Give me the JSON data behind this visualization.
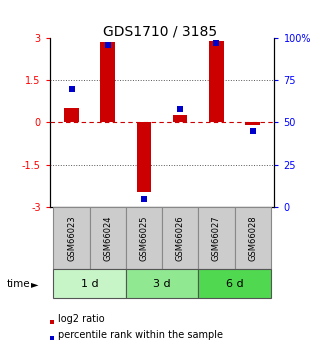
{
  "title": "GDS1710 / 3185",
  "samples": [
    "GSM66023",
    "GSM66024",
    "GSM66025",
    "GSM66026",
    "GSM66027",
    "GSM66028"
  ],
  "log2_ratio": [
    0.5,
    2.85,
    -2.45,
    0.25,
    2.9,
    -0.1
  ],
  "percentile_rank": [
    70,
    96,
    5,
    58,
    97,
    45
  ],
  "groups": [
    {
      "label": "1 d",
      "samples": [
        0,
        1
      ],
      "color": "#c8f5c8"
    },
    {
      "label": "3 d",
      "samples": [
        2,
        3
      ],
      "color": "#90e890"
    },
    {
      "label": "6 d",
      "samples": [
        4,
        5
      ],
      "color": "#50d850"
    }
  ],
  "ylim_left": [
    -3,
    3
  ],
  "ylim_right": [
    0,
    100
  ],
  "yticks_left": [
    -3,
    -1.5,
    0,
    1.5,
    3
  ],
  "ytick_labels_left": [
    "-3",
    "-1.5",
    "0",
    "1.5",
    "3"
  ],
  "yticks_right": [
    0,
    25,
    50,
    75,
    100
  ],
  "ytick_labels_right": [
    "0",
    "25",
    "50",
    "75",
    "100%"
  ],
  "bar_color_red": "#cc0000",
  "bar_color_blue": "#0000cc",
  "hline_color": "#cc0000",
  "dotted_color": "#555555",
  "bg_color": "#ffffff",
  "sample_box_color": "#cccccc",
  "bar_width": 0.4
}
